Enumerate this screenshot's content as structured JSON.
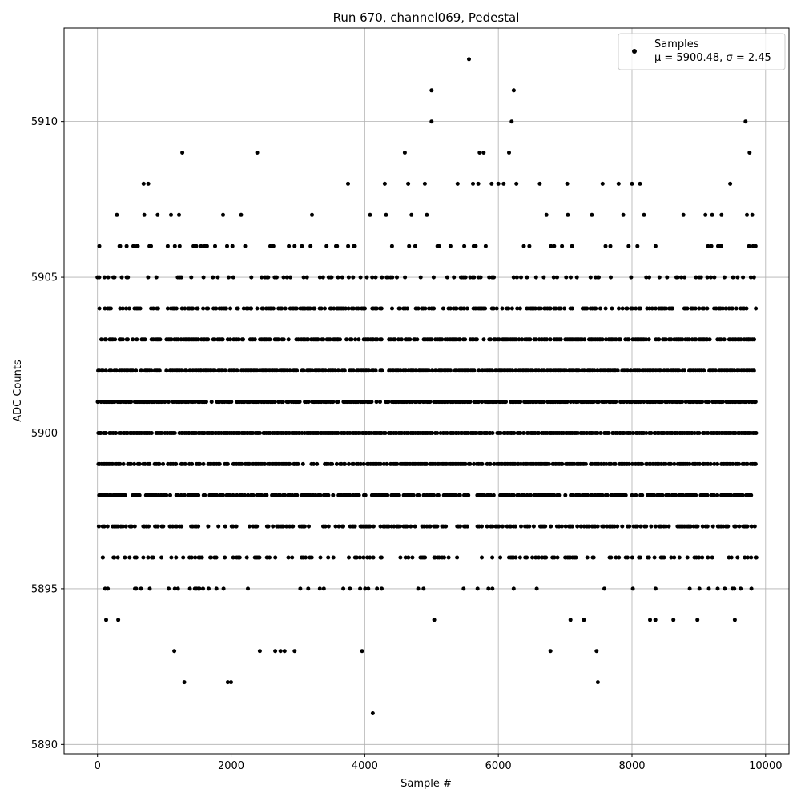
{
  "chart_data": {
    "type": "scatter",
    "title": "Run 670, channel069, Pedestal",
    "xlabel": "Sample #",
    "ylabel": "ADC Counts",
    "xlim": [
      -500,
      10350
    ],
    "ylim": [
      5889.7,
      5913.0
    ],
    "grid": true,
    "legend_placement": "upper right",
    "xticks": [
      0,
      2000,
      4000,
      6000,
      8000,
      10000
    ],
    "yticks": [
      5890,
      5895,
      5900,
      5905,
      5910
    ],
    "x_tick_labels": [
      "0",
      "2000",
      "4000",
      "6000",
      "8000",
      "10000"
    ],
    "y_tick_labels": [
      "5890",
      "5895",
      "5900",
      "5905",
      "5910"
    ],
    "series": [
      {
        "name": "Samples",
        "marker_color": "#000000",
        "stat_label": "μ = 5900.48, σ = 2.45",
        "level_density": [
          {
            "y": 5904,
            "rate": 0.55
          },
          {
            "y": 5903,
            "rate": 0.7
          },
          {
            "y": 5902,
            "rate": 0.8
          },
          {
            "y": 5901,
            "rate": 0.85
          },
          {
            "y": 5900,
            "rate": 0.9
          },
          {
            "y": 5899,
            "rate": 0.8
          },
          {
            "y": 5898,
            "rate": 0.7
          },
          {
            "y": 5897,
            "rate": 0.5
          },
          {
            "y": 5905,
            "rate": 0.28
          },
          {
            "y": 5896,
            "rate": 0.32
          },
          {
            "y": 5895,
            "rate": 0.12
          },
          {
            "y": 5906,
            "rate": 0.12
          }
        ],
        "points": [
          [
            0,
            5905
          ],
          [
            20,
            5897
          ],
          [
            80,
            5896
          ],
          [
            130,
            5894
          ],
          [
            160,
            5905
          ],
          [
            290,
            5907
          ],
          [
            310,
            5894
          ],
          [
            330,
            5906
          ],
          [
            690,
            5908
          ],
          [
            760,
            5908
          ],
          [
            700,
            5907
          ],
          [
            900,
            5907
          ],
          [
            1100,
            5907
          ],
          [
            1270,
            5909
          ],
          [
            1300,
            5892
          ],
          [
            1150,
            5893
          ],
          [
            1220,
            5907
          ],
          [
            1550,
            5906
          ],
          [
            1760,
            5906
          ],
          [
            1880,
            5907
          ],
          [
            1950,
            5892
          ],
          [
            2000,
            5892
          ],
          [
            2020,
            5906
          ],
          [
            2150,
            5907
          ],
          [
            2210,
            5906
          ],
          [
            2390,
            5909
          ],
          [
            2430,
            5893
          ],
          [
            2660,
            5893
          ],
          [
            2740,
            5893
          ],
          [
            2800,
            5893
          ],
          [
            2950,
            5893
          ],
          [
            3060,
            5906
          ],
          [
            3210,
            5907
          ],
          [
            3570,
            5906
          ],
          [
            3750,
            5908
          ],
          [
            3960,
            5893
          ],
          [
            4080,
            5907
          ],
          [
            4120,
            5891
          ],
          [
            4300,
            5908
          ],
          [
            4320,
            5907
          ],
          [
            4600,
            5909
          ],
          [
            4650,
            5908
          ],
          [
            4700,
            5907
          ],
          [
            4900,
            5908
          ],
          [
            4930,
            5907
          ],
          [
            5000,
            5911
          ],
          [
            5000,
            5910
          ],
          [
            5040,
            5894
          ],
          [
            5390,
            5908
          ],
          [
            5560,
            5912
          ],
          [
            5720,
            5909
          ],
          [
            5780,
            5909
          ],
          [
            5620,
            5908
          ],
          [
            5700,
            5908
          ],
          [
            5900,
            5908
          ],
          [
            6000,
            5908
          ],
          [
            6080,
            5908
          ],
          [
            6160,
            5909
          ],
          [
            6200,
            5910
          ],
          [
            6230,
            5911
          ],
          [
            6270,
            5908
          ],
          [
            6620,
            5908
          ],
          [
            6720,
            5907
          ],
          [
            6780,
            5893
          ],
          [
            7030,
            5908
          ],
          [
            7040,
            5907
          ],
          [
            7080,
            5894
          ],
          [
            7280,
            5894
          ],
          [
            7400,
            5907
          ],
          [
            7470,
            5893
          ],
          [
            7490,
            5892
          ],
          [
            7560,
            5908
          ],
          [
            7800,
            5908
          ],
          [
            7870,
            5907
          ],
          [
            8000,
            5908
          ],
          [
            8120,
            5908
          ],
          [
            8180,
            5907
          ],
          [
            8270,
            5894
          ],
          [
            8350,
            5894
          ],
          [
            8620,
            5894
          ],
          [
            8770,
            5907
          ],
          [
            8980,
            5894
          ],
          [
            9100,
            5907
          ],
          [
            9200,
            5907
          ],
          [
            9340,
            5907
          ],
          [
            9470,
            5908
          ],
          [
            9540,
            5894
          ],
          [
            9700,
            5910
          ],
          [
            9760,
            5909
          ],
          [
            9720,
            5907
          ],
          [
            9800,
            5907
          ],
          [
            9850,
            5896
          ],
          [
            9850,
            5906
          ],
          [
            5040,
            5896
          ],
          [
            4800,
            5895
          ],
          [
            5480,
            5895
          ]
        ]
      }
    ]
  }
}
